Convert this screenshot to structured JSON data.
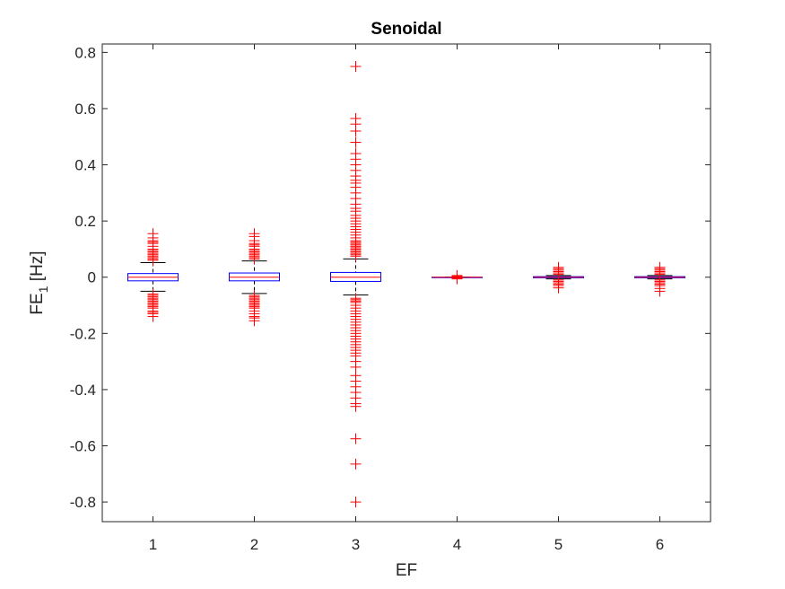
{
  "chart_data": {
    "type": "box",
    "title": "Senoidal",
    "xlabel": "EF",
    "ylabel": {
      "main": "FE",
      "subscript": "1",
      "unit": " [Hz]"
    },
    "categories": [
      "1",
      "2",
      "3",
      "4",
      "5",
      "6"
    ],
    "ylim": [
      -0.87,
      0.83
    ],
    "yticks": [
      -0.8,
      -0.6,
      -0.4,
      -0.2,
      0,
      0.2,
      0.4,
      0.6,
      0.8
    ],
    "ytick_labels": [
      "-0.8",
      "-0.6",
      "-0.4",
      "-0.2",
      "0",
      "0.2",
      "0.4",
      "0.6",
      "0.8"
    ],
    "grid": false,
    "colors": {
      "box": "#0000ff",
      "median": "#ff0000",
      "whisker": "#000000",
      "outlier": "#ff0000",
      "axis": "#262626"
    },
    "boxes": [
      {
        "category": "1",
        "q1": -0.013,
        "median": 0.0,
        "q3": 0.013,
        "whisker_low": -0.05,
        "whisker_high": 0.052,
        "outliers": [
          0.155,
          0.14,
          0.13,
          0.125,
          0.12,
          0.11,
          0.1,
          0.095,
          0.09,
          0.085,
          0.08,
          0.075,
          0.07,
          0.065,
          0.06,
          -0.06,
          -0.065,
          -0.07,
          -0.075,
          -0.08,
          -0.085,
          -0.09,
          -0.095,
          -0.1,
          -0.105,
          -0.11,
          -0.12,
          -0.125,
          -0.13,
          -0.14
        ]
      },
      {
        "category": "2",
        "q1": -0.013,
        "median": 0.0,
        "q3": 0.015,
        "whisker_low": -0.058,
        "whisker_high": 0.058,
        "outliers": [
          0.155,
          0.145,
          0.13,
          0.12,
          0.115,
          0.11,
          0.1,
          0.095,
          0.09,
          0.085,
          0.08,
          0.075,
          0.07,
          0.065,
          -0.065,
          -0.07,
          -0.075,
          -0.08,
          -0.085,
          -0.09,
          -0.095,
          -0.1,
          -0.105,
          -0.11,
          -0.12,
          -0.13,
          -0.14,
          -0.145,
          -0.155
        ]
      },
      {
        "category": "3",
        "q1": -0.015,
        "median": 0.0,
        "q3": 0.017,
        "whisker_low": -0.063,
        "whisker_high": 0.065,
        "outliers": [
          0.75,
          0.565,
          0.545,
          0.52,
          0.48,
          0.44,
          0.42,
          0.4,
          0.38,
          0.36,
          0.345,
          0.335,
          0.32,
          0.3,
          0.28,
          0.26,
          0.245,
          0.235,
          0.22,
          0.21,
          0.2,
          0.19,
          0.18,
          0.17,
          0.16,
          0.15,
          0.14,
          0.13,
          0.125,
          0.12,
          0.115,
          0.11,
          0.105,
          0.1,
          0.095,
          0.09,
          0.085,
          0.08,
          0.075,
          -0.075,
          -0.08,
          -0.085,
          -0.09,
          -0.1,
          -0.11,
          -0.12,
          -0.13,
          -0.14,
          -0.15,
          -0.16,
          -0.17,
          -0.18,
          -0.19,
          -0.2,
          -0.21,
          -0.22,
          -0.23,
          -0.24,
          -0.25,
          -0.26,
          -0.27,
          -0.28,
          -0.3,
          -0.32,
          -0.35,
          -0.37,
          -0.39,
          -0.41,
          -0.43,
          -0.45,
          -0.46,
          -0.575,
          -0.665,
          -0.8
        ]
      },
      {
        "category": "4",
        "q1": 0.0,
        "median": 0.0,
        "q3": 0.0,
        "whisker_low": 0.0,
        "whisker_high": 0.0,
        "outliers": [
          0.0,
          0.003,
          -0.003,
          0.006,
          -0.006
        ]
      },
      {
        "category": "5",
        "q1": -0.002,
        "median": 0.0,
        "q3": 0.002,
        "whisker_low": -0.006,
        "whisker_high": 0.006,
        "outliers": [
          0.035,
          0.03,
          0.025,
          0.02,
          0.015,
          0.01,
          -0.01,
          -0.015,
          -0.02,
          -0.025,
          -0.03,
          -0.038
        ]
      },
      {
        "category": "6",
        "q1": -0.002,
        "median": 0.0,
        "q3": 0.002,
        "whisker_low": -0.006,
        "whisker_high": 0.006,
        "outliers": [
          0.035,
          0.03,
          0.025,
          0.02,
          0.015,
          0.01,
          -0.01,
          -0.015,
          -0.02,
          -0.025,
          -0.03,
          -0.04,
          -0.05
        ]
      }
    ]
  }
}
